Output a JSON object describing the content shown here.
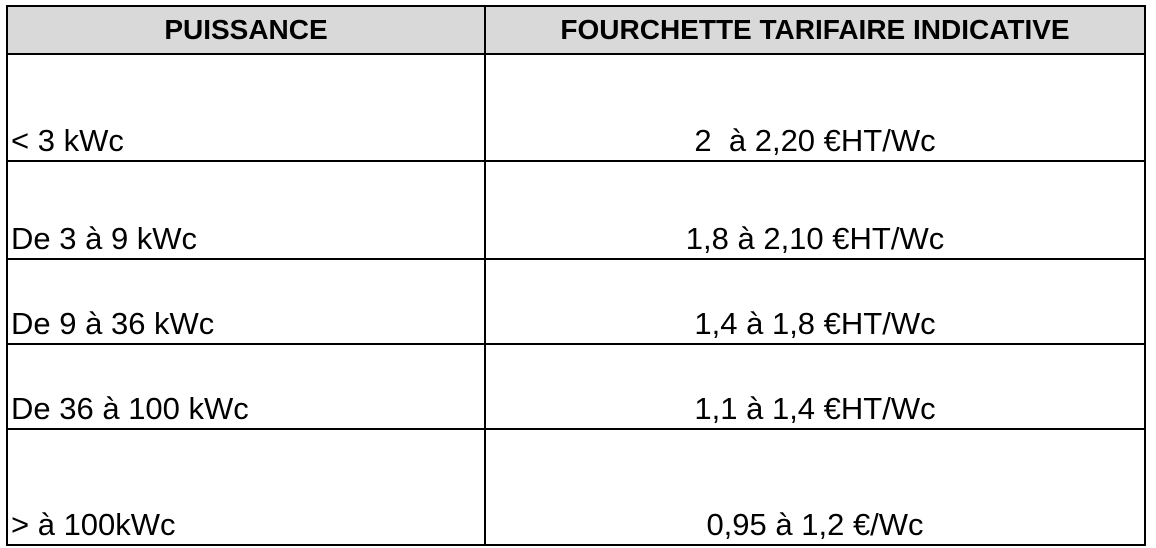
{
  "table": {
    "headers": {
      "col1": "PUISSANCE",
      "col2": "FOURCHETTE TARIFAIRE INDICATIVE"
    },
    "rows": [
      {
        "puissance": "< 3 kWc",
        "tarif": "2  à 2,20 €HT/Wc"
      },
      {
        "puissance": "De 3 à 9 kWc",
        "tarif": "1,8 à 2,10 €HT/Wc"
      },
      {
        "puissance": "De 9 à 36 kWc",
        "tarif": "1,4 à 1,8 €HT/Wc"
      },
      {
        "puissance": "De 36 à 100 kWc",
        "tarif": "1,1 à 1,4 €HT/Wc"
      },
      {
        "puissance": "> à 100kWc",
        "tarif": "0,95 à 1,2 €/Wc"
      }
    ]
  },
  "colors": {
    "header_background": "#d9d9d9",
    "border": "#000000"
  }
}
